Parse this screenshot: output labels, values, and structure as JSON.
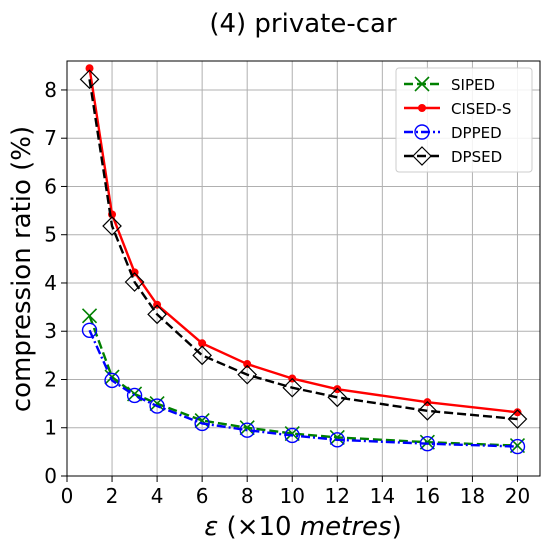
{
  "chart_data": {
    "type": "line",
    "title": "(4) private-car",
    "xlabel_parts": [
      {
        "text": "ε",
        "italic": true
      },
      {
        "text": " (×10 ",
        "italic": false
      },
      {
        "text": "metres",
        "italic": true
      },
      {
        "text": ")",
        "italic": false
      }
    ],
    "ylabel": "compression ratio (%)",
    "xlim": [
      0,
      21
    ],
    "ylim": [
      0,
      8.6
    ],
    "xticks": [
      0,
      2,
      4,
      6,
      8,
      10,
      12,
      14,
      16,
      18,
      20
    ],
    "yticks": [
      0,
      1,
      2,
      3,
      4,
      5,
      6,
      7,
      8
    ],
    "x": [
      1,
      2,
      3,
      4,
      6,
      8,
      10,
      12,
      16,
      20
    ],
    "grid": true,
    "legend_position": "top-right",
    "series": [
      {
        "name": "SIPED",
        "color": "#008000",
        "dash": "dash",
        "marker": "x",
        "values": [
          3.32,
          2.05,
          1.7,
          1.5,
          1.15,
          1.0,
          0.88,
          0.8,
          0.7,
          0.63
        ]
      },
      {
        "name": "CISED-S",
        "color": "#ff0000",
        "dash": "solid",
        "marker": "dot",
        "values": [
          8.45,
          5.42,
          4.22,
          3.55,
          2.75,
          2.32,
          2.02,
          1.8,
          1.53,
          1.32
        ]
      },
      {
        "name": "DPPED",
        "color": "#0000ff",
        "dash": "dashdot",
        "marker": "circle",
        "values": [
          3.02,
          1.98,
          1.67,
          1.45,
          1.09,
          0.95,
          0.84,
          0.75,
          0.67,
          0.61
        ]
      },
      {
        "name": "DPSED",
        "color": "#000000",
        "dash": "dash",
        "marker": "diamond",
        "values": [
          8.22,
          5.18,
          4.02,
          3.35,
          2.5,
          2.1,
          1.83,
          1.63,
          1.35,
          1.18
        ]
      }
    ]
  }
}
